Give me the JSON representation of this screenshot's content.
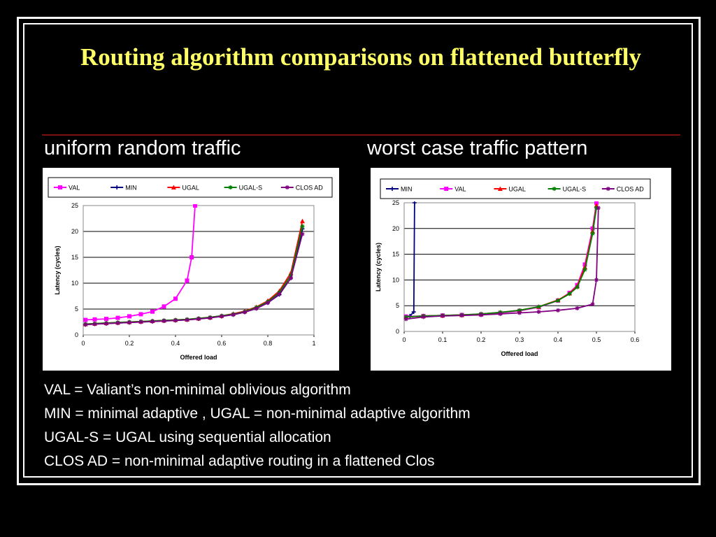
{
  "slide": {
    "title": "Routing algorithm comparisons on flattened butterfly",
    "subtitle_left": "uniform random traffic",
    "subtitle_right": "worst case traffic pattern",
    "definitions": [
      "VAL = Valiant’s non-minimal oblivious algorithm",
      "MIN = minimal adaptive , UGAL = non-minimal adaptive algorithm",
      "UGAL-S = UGAL using sequential allocation",
      "CLOS AD = non-minimal adaptive routing in a flattened Clos"
    ]
  },
  "chart_data": [
    {
      "type": "line",
      "xlabel": "Offered load",
      "ylabel": "Latency (cycles)",
      "xlim": [
        0,
        1
      ],
      "ylim": [
        0,
        25
      ],
      "xticks": [
        "0",
        "0.2",
        "0.4",
        "0.6",
        "0.8",
        "1"
      ],
      "yticks": [
        "0",
        "5",
        "10",
        "15",
        "20",
        "25"
      ],
      "grid": "horizontal",
      "legend": "top",
      "series": [
        {
          "name": "VAL",
          "color": "#ff00ff",
          "marker": "square",
          "points": [
            [
              0.01,
              2.9
            ],
            [
              0.05,
              3.0
            ],
            [
              0.1,
              3.1
            ],
            [
              0.15,
              3.3
            ],
            [
              0.2,
              3.6
            ],
            [
              0.25,
              4.0
            ],
            [
              0.3,
              4.5
            ],
            [
              0.35,
              5.5
            ],
            [
              0.4,
              7.0
            ],
            [
              0.45,
              10.5
            ],
            [
              0.47,
              15.0
            ],
            [
              0.485,
              25.0
            ]
          ]
        },
        {
          "name": "MIN",
          "color": "#000080",
          "marker": "plus",
          "points": [
            [
              0.01,
              2.0
            ],
            [
              0.05,
              2.1
            ],
            [
              0.1,
              2.2
            ],
            [
              0.15,
              2.3
            ],
            [
              0.2,
              2.4
            ],
            [
              0.25,
              2.5
            ],
            [
              0.3,
              2.6
            ],
            [
              0.35,
              2.7
            ],
            [
              0.4,
              2.8
            ],
            [
              0.45,
              2.9
            ],
            [
              0.5,
              3.1
            ],
            [
              0.55,
              3.3
            ],
            [
              0.6,
              3.6
            ],
            [
              0.65,
              3.9
            ],
            [
              0.7,
              4.4
            ],
            [
              0.75,
              5.1
            ],
            [
              0.8,
              6.2
            ],
            [
              0.85,
              7.8
            ],
            [
              0.9,
              11.0
            ],
            [
              0.95,
              20.5
            ]
          ]
        },
        {
          "name": "UGAL",
          "color": "#ff0000",
          "marker": "triangle",
          "points": [
            [
              0.01,
              2.1
            ],
            [
              0.05,
              2.2
            ],
            [
              0.1,
              2.3
            ],
            [
              0.15,
              2.4
            ],
            [
              0.2,
              2.5
            ],
            [
              0.25,
              2.6
            ],
            [
              0.3,
              2.7
            ],
            [
              0.35,
              2.8
            ],
            [
              0.4,
              2.9
            ],
            [
              0.45,
              3.0
            ],
            [
              0.5,
              3.2
            ],
            [
              0.55,
              3.4
            ],
            [
              0.6,
              3.7
            ],
            [
              0.65,
              4.1
            ],
            [
              0.7,
              4.6
            ],
            [
              0.75,
              5.4
            ],
            [
              0.8,
              6.6
            ],
            [
              0.85,
              8.5
            ],
            [
              0.9,
              12.0
            ],
            [
              0.95,
              22.0
            ]
          ]
        },
        {
          "name": "UGAL-S",
          "color": "#008000",
          "marker": "star",
          "points": [
            [
              0.01,
              2.1
            ],
            [
              0.05,
              2.2
            ],
            [
              0.1,
              2.3
            ],
            [
              0.15,
              2.4
            ],
            [
              0.2,
              2.5
            ],
            [
              0.25,
              2.6
            ],
            [
              0.3,
              2.7
            ],
            [
              0.35,
              2.8
            ],
            [
              0.4,
              2.9
            ],
            [
              0.45,
              3.0
            ],
            [
              0.5,
              3.2
            ],
            [
              0.55,
              3.4
            ],
            [
              0.6,
              3.7
            ],
            [
              0.65,
              4.0
            ],
            [
              0.7,
              4.5
            ],
            [
              0.75,
              5.3
            ],
            [
              0.8,
              6.4
            ],
            [
              0.85,
              8.2
            ],
            [
              0.9,
              11.5
            ],
            [
              0.95,
              21.0
            ]
          ]
        },
        {
          "name": "CLOS AD",
          "color": "#800080",
          "marker": "star",
          "points": [
            [
              0.01,
              2.0
            ],
            [
              0.05,
              2.1
            ],
            [
              0.1,
              2.2
            ],
            [
              0.15,
              2.3
            ],
            [
              0.2,
              2.4
            ],
            [
              0.25,
              2.5
            ],
            [
              0.3,
              2.6
            ],
            [
              0.35,
              2.7
            ],
            [
              0.4,
              2.8
            ],
            [
              0.45,
              2.9
            ],
            [
              0.5,
              3.1
            ],
            [
              0.55,
              3.3
            ],
            [
              0.6,
              3.6
            ],
            [
              0.65,
              3.9
            ],
            [
              0.7,
              4.4
            ],
            [
              0.75,
              5.1
            ],
            [
              0.8,
              6.2
            ],
            [
              0.85,
              7.9
            ],
            [
              0.9,
              11.0
            ],
            [
              0.95,
              19.5
            ]
          ]
        }
      ]
    },
    {
      "type": "line",
      "xlabel": "Offered load",
      "ylabel": "Latency (cycles)",
      "xlim": [
        0,
        0.6
      ],
      "ylim": [
        0,
        25
      ],
      "xticks": [
        "0",
        "0.1",
        "0.2",
        "0.3",
        "0.4",
        "0.5",
        "0.6"
      ],
      "yticks": [
        "0",
        "5",
        "10",
        "15",
        "20",
        "25"
      ],
      "grid": "horizontal",
      "legend": "top",
      "series": [
        {
          "name": "MIN",
          "color": "#000080",
          "marker": "plus",
          "points": [
            [
              0.005,
              2.8
            ],
            [
              0.015,
              3.0
            ],
            [
              0.025,
              3.8
            ],
            [
              0.027,
              25.0
            ]
          ]
        },
        {
          "name": "VAL",
          "color": "#ff00ff",
          "marker": "square",
          "points": [
            [
              0.005,
              2.9
            ],
            [
              0.05,
              3.0
            ],
            [
              0.1,
              3.1
            ],
            [
              0.15,
              3.2
            ],
            [
              0.2,
              3.3
            ],
            [
              0.25,
              3.6
            ],
            [
              0.3,
              4.0
            ],
            [
              0.35,
              4.7
            ],
            [
              0.4,
              6.0
            ],
            [
              0.43,
              7.5
            ],
            [
              0.45,
              9.0
            ],
            [
              0.47,
              13.0
            ],
            [
              0.49,
              20.0
            ],
            [
              0.5,
              25.0
            ]
          ]
        },
        {
          "name": "UGAL",
          "color": "#ff0000",
          "marker": "triangle",
          "points": [
            [
              0.005,
              2.8
            ],
            [
              0.05,
              3.0
            ],
            [
              0.1,
              3.1
            ],
            [
              0.15,
              3.2
            ],
            [
              0.2,
              3.4
            ],
            [
              0.25,
              3.7
            ],
            [
              0.3,
              4.1
            ],
            [
              0.35,
              4.8
            ],
            [
              0.4,
              6.1
            ],
            [
              0.43,
              7.4
            ],
            [
              0.45,
              8.8
            ],
            [
              0.47,
              12.5
            ],
            [
              0.49,
              19.5
            ],
            [
              0.5,
              24.5
            ]
          ]
        },
        {
          "name": "UGAL-S",
          "color": "#008000",
          "marker": "star",
          "points": [
            [
              0.005,
              2.8
            ],
            [
              0.05,
              3.0
            ],
            [
              0.1,
              3.1
            ],
            [
              0.15,
              3.2
            ],
            [
              0.2,
              3.4
            ],
            [
              0.25,
              3.7
            ],
            [
              0.3,
              4.1
            ],
            [
              0.35,
              4.8
            ],
            [
              0.4,
              6.0
            ],
            [
              0.43,
              7.3
            ],
            [
              0.45,
              8.6
            ],
            [
              0.47,
              12.0
            ],
            [
              0.49,
              19.0
            ],
            [
              0.5,
              24.0
            ]
          ]
        },
        {
          "name": "CLOS AD",
          "color": "#800080",
          "marker": "star",
          "points": [
            [
              0.005,
              2.4
            ],
            [
              0.05,
              2.8
            ],
            [
              0.1,
              3.0
            ],
            [
              0.15,
              3.1
            ],
            [
              0.2,
              3.2
            ],
            [
              0.25,
              3.4
            ],
            [
              0.3,
              3.6
            ],
            [
              0.35,
              3.8
            ],
            [
              0.4,
              4.1
            ],
            [
              0.45,
              4.5
            ],
            [
              0.49,
              5.3
            ],
            [
              0.5,
              10.0
            ],
            [
              0.505,
              24.0
            ]
          ]
        }
      ]
    }
  ]
}
